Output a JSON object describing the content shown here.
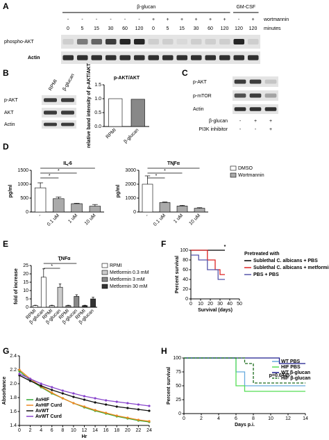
{
  "panels": {
    "A": {
      "label": "A",
      "header": "β-glucan",
      "header2": "GM-CSF",
      "row1_label": "wortmannin",
      "row1": [
        "-",
        "-",
        "-",
        "-",
        "-",
        "-",
        "+",
        "+",
        "+",
        "+",
        "+",
        "+",
        "-",
        "+"
      ],
      "row2_label": "minutes",
      "row2": [
        0,
        5,
        15,
        30,
        60,
        120,
        0,
        5,
        15,
        30,
        60,
        120,
        120,
        120
      ],
      "blots": [
        "phospho-AKT",
        "Actin"
      ]
    },
    "B": {
      "label": "B",
      "lanes": [
        "RPMI",
        "β-glucan"
      ],
      "blots": [
        "p-AKT",
        "AKT",
        "Actin"
      ],
      "chart": {
        "type": "bar",
        "title": "p-AKT/AKT",
        "y_label": "relative band intensity of p-AKT/AKT",
        "categories": [
          "RPMI",
          "β-glucan"
        ],
        "values": [
          1.0,
          0.98
        ],
        "colors": [
          "#ffffff",
          "#888888"
        ],
        "ylim": [
          0,
          1.5
        ],
        "yticks": [
          {
            "value": 0,
            "label": "0.0"
          },
          {
            "value": 0.5,
            "label": "0.5"
          },
          {
            "value": 1,
            "label": "1.0"
          },
          {
            "value": 1.5,
            "label": "1.5"
          }
        ]
      }
    },
    "C": {
      "label": "C",
      "blots": [
        "p-AKT",
        "p-mTOR",
        "Actin"
      ],
      "rows": [
        {
          "name": "β-glucan",
          "marks": [
            "-",
            "+",
            "+"
          ]
        },
        {
          "name": "PI3K inhibitor",
          "marks": [
            "-",
            "-",
            "+"
          ]
        }
      ]
    },
    "D": {
      "label": "D",
      "legend": [
        {
          "name": "DMSO",
          "color": "#ffffff"
        },
        {
          "name": "Wortmannin",
          "color": "#aaaaaa"
        }
      ],
      "charts": [
        {
          "type": "bar",
          "title": "IL-6",
          "y_label": "pg/ml",
          "categories": [
            "-",
            "0.1 uM",
            "1 uM",
            "10 uM"
          ],
          "values": [
            870,
            480,
            300,
            210
          ],
          "errors": [
            180,
            60,
            15,
            60
          ],
          "colors": [
            "#ffffff",
            "#aaaaaa",
            "#aaaaaa",
            "#aaaaaa"
          ],
          "ylim": [
            0,
            1500
          ],
          "yticks": [
            0,
            500,
            1000,
            1500
          ],
          "significance": [
            {
              "label": "*",
              "from": 0,
              "to": 3
            },
            {
              "label": "*",
              "from": 0,
              "to": 2
            },
            {
              "label": "*",
              "from": 0,
              "to": 1
            }
          ]
        },
        {
          "type": "bar",
          "title": "TNFα",
          "y_label": "pg/ml",
          "categories": [
            "-",
            "0.1 uM",
            "1 uM",
            "10 uM"
          ],
          "values": [
            2000,
            680,
            430,
            270
          ],
          "errors": [
            600,
            40,
            50,
            40
          ],
          "colors": [
            "#ffffff",
            "#aaaaaa",
            "#aaaaaa",
            "#aaaaaa"
          ],
          "ylim": [
            0,
            3000
          ],
          "yticks": [
            0,
            1000,
            2000,
            3000
          ],
          "significance": [
            {
              "label": "*",
              "from": 0,
              "to": 3
            },
            {
              "label": "*",
              "from": 0,
              "to": 2
            },
            {
              "label": "*",
              "from": 0,
              "to": 1
            }
          ]
        }
      ]
    },
    "E": {
      "label": "E",
      "chart": {
        "type": "bar",
        "title": "TNFα",
        "y_label": "fold of increase",
        "categories": [
          "RPMI",
          "β-glucan",
          "RPMI",
          "β-glucan",
          "RPMI",
          "β-glucan",
          "RPMI",
          "β-glucan"
        ],
        "values": [
          1,
          18,
          1,
          12,
          1,
          6.5,
          1,
          5
        ],
        "errors": [
          0.2,
          5,
          0.2,
          2,
          0.2,
          1,
          0.2,
          1
        ],
        "colors": [
          "#ffffff",
          "#ffffff",
          "#cccccc",
          "#cccccc",
          "#888888",
          "#888888",
          "#333333",
          "#333333"
        ],
        "ylim": [
          0,
          25
        ],
        "yticks": [
          0,
          5,
          10,
          15,
          20,
          25
        ],
        "significance": [
          {
            "label": "*",
            "from": 1,
            "to": 5
          },
          {
            "label": "*",
            "from": 1,
            "to": 3
          }
        ],
        "legend": [
          {
            "name": "RPMI",
            "color": "#ffffff"
          },
          {
            "name": "Metformin 0.3 mM",
            "color": "#cccccc"
          },
          {
            "name": "Metformin 3 mM",
            "color": "#888888"
          },
          {
            "name": "Metformin 30 mM",
            "color": "#333333"
          }
        ]
      }
    },
    "F": {
      "label": "F",
      "chart": {
        "type": "step",
        "x_label": "Survival (days)",
        "y_label": "Percent survival",
        "legend_title": "Pretreated with",
        "xlim": [
          0,
          50
        ],
        "xticks": [
          0,
          10,
          20,
          30,
          40,
          50
        ],
        "ylim": [
          0,
          100
        ],
        "yticks": [
          0,
          20,
          40,
          60,
          80,
          100
        ],
        "series": [
          {
            "name": "Sublethal C. albicans + PBS",
            "color": "#000000",
            "x": [
              0,
              35
            ],
            "values": [
              100,
              100
            ]
          },
          {
            "name": "Sublethal C. albicans + metformin",
            "color": "#dd2222",
            "x": [
              0,
              17,
              25,
              30,
              35
            ],
            "values": [
              100,
              80,
              60,
              50,
              50
            ]
          },
          {
            "name": "PBS + PBS",
            "color": "#5555aa",
            "x": [
              0,
              8,
              17,
              28,
              35
            ],
            "values": [
              90,
              80,
              60,
              40,
              40
            ]
          }
        ],
        "annotations": [
          {
            "text": "*",
            "x": 35,
            "y": 100
          }
        ]
      }
    },
    "G": {
      "label": "G",
      "chart": {
        "type": "line",
        "x_label": "Hr",
        "y_label": "Absorbance",
        "x": [
          0,
          2,
          4,
          6,
          8,
          10,
          12,
          14,
          16,
          18,
          20,
          22,
          24
        ],
        "xlim": [
          0,
          24
        ],
        "xticks": [
          0,
          2,
          4,
          6,
          8,
          10,
          12,
          14,
          16,
          18,
          20,
          22,
          24
        ],
        "ylim": [
          1.4,
          2.4
        ],
        "yticks": [
          1.4,
          1.6,
          1.8,
          {
            "value": 2,
            "label": "2.0"
          },
          2.2,
          2.4
        ],
        "series": [
          {
            "name": "AvHIF",
            "color": "#33aa33",
            "values": [
              2.18,
              2.05,
              1.95,
              1.86,
              1.79,
              1.72,
              1.66,
              1.61,
              1.57,
              1.53,
              1.5,
              1.47,
              1.45
            ]
          },
          {
            "name": "AvHIF Curd",
            "color": "#ee8822",
            "values": [
              2.2,
              2.07,
              1.96,
              1.87,
              1.79,
              1.72,
              1.67,
              1.62,
              1.58,
              1.54,
              1.51,
              1.48,
              1.46
            ]
          },
          {
            "name": "AvWT",
            "color": "#111111",
            "values": [
              2.12,
              2.04,
              1.97,
              1.91,
              1.86,
              1.81,
              1.77,
              1.73,
              1.7,
              1.67,
              1.65,
              1.63,
              1.61
            ]
          },
          {
            "name": "AvWT Curd",
            "color": "#8844cc",
            "values": [
              2.14,
              2.07,
              2.0,
              1.95,
              1.9,
              1.86,
              1.82,
              1.79,
              1.76,
              1.74,
              1.72,
              1.7,
              1.68
            ]
          }
        ]
      }
    },
    "H": {
      "label": "H",
      "chart": {
        "type": "step",
        "x_label": "Days p.i.",
        "y_label": "Percent survival",
        "xlim": [
          0,
          14
        ],
        "xticks": [
          0,
          2,
          4,
          6,
          8,
          10,
          12,
          14
        ],
        "ylim": [
          0,
          100
        ],
        "yticks": [
          0,
          25,
          50,
          75,
          100
        ],
        "series": [
          {
            "name": "WT PBS",
            "color": "#66aadd",
            "x": [
              0,
              6,
              7,
              14
            ],
            "values": [
              100,
              75,
              50,
              50
            ]
          },
          {
            "name": "HIF PBS",
            "color": "#55dd55",
            "x": [
              0,
              6,
              7,
              14
            ],
            "values": [
              100,
              50,
              40,
              40
            ]
          },
          {
            "name": "WT β-glucan",
            "color": "#1a1a8c",
            "x": [
              0,
              11,
              14
            ],
            "values": [
              100,
              90,
              90
            ]
          },
          {
            "name": "HIF β-glucan",
            "color": "#1a6b1a",
            "dashed": true,
            "x": [
              0,
              7,
              8,
              14
            ],
            "values": [
              100,
              90,
              55,
              55
            ]
          }
        ],
        "annotations": [
          {
            "text": "p=0.0445",
            "x": 11,
            "y": 62
          }
        ]
      }
    }
  }
}
